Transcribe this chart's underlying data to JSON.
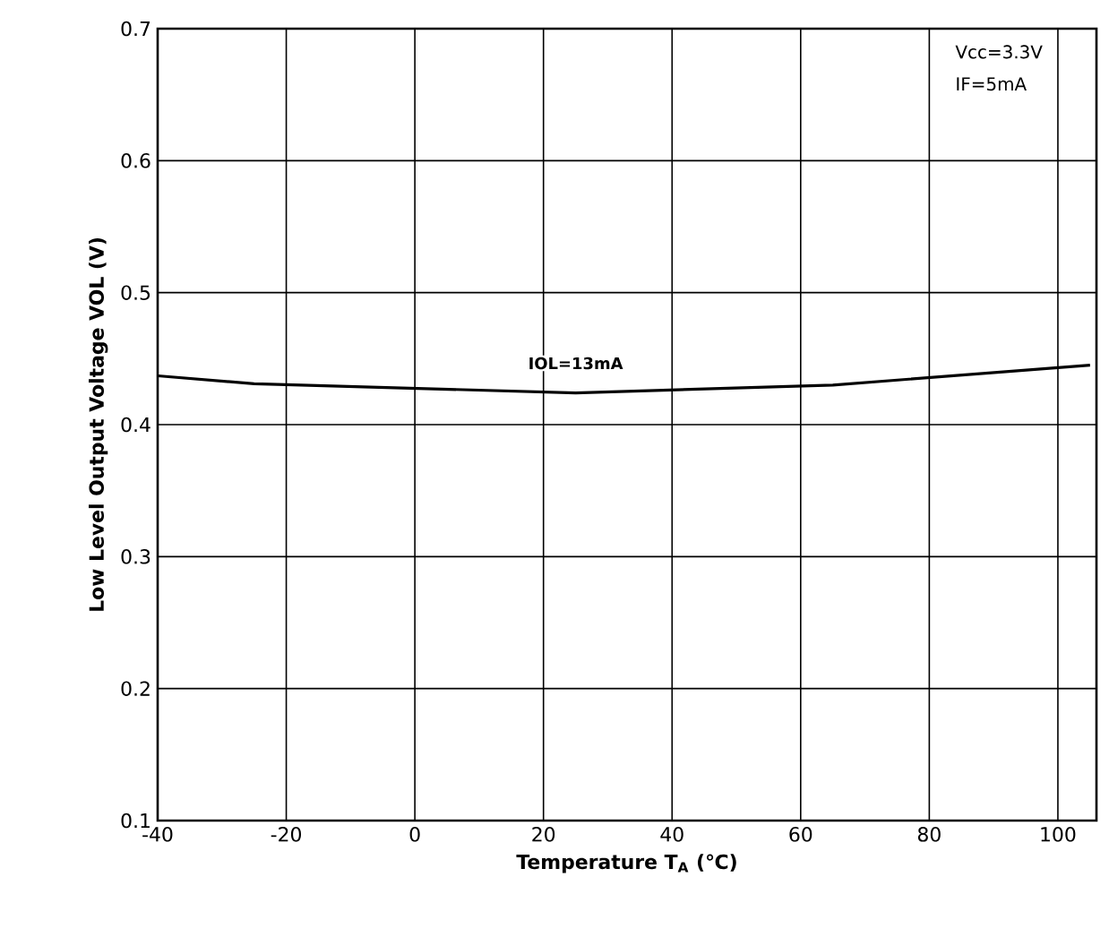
{
  "chart_data": {
    "type": "line",
    "xlabel": "Temperature T$_{A}$ (℃)",
    "ylabel": "Low Level Output Voltage VOL (V)",
    "annotations": [
      "Vcc=3.3V",
      "IF=5mA",
      {
        "text": "IOL=13mA",
        "x": 25,
        "y": 0.424
      }
    ],
    "series": [
      {
        "x": [
          -40,
          -25,
          25,
          65,
          105
        ],
        "values": [
          0.437,
          0.431,
          0.424,
          0.43,
          0.445
        ],
        "color": "#000000"
      }
    ],
    "xlim": [
      -40,
      106
    ],
    "ylim": [
      0.1,
      0.7
    ],
    "xticks": [
      -40,
      -20,
      0,
      20,
      40,
      60,
      80,
      100
    ],
    "yticks": [
      0.1,
      0.2,
      0.3,
      0.4,
      0.5,
      0.6,
      0.7
    ],
    "grid": true,
    "line_style": "solid",
    "marker": "none"
  }
}
